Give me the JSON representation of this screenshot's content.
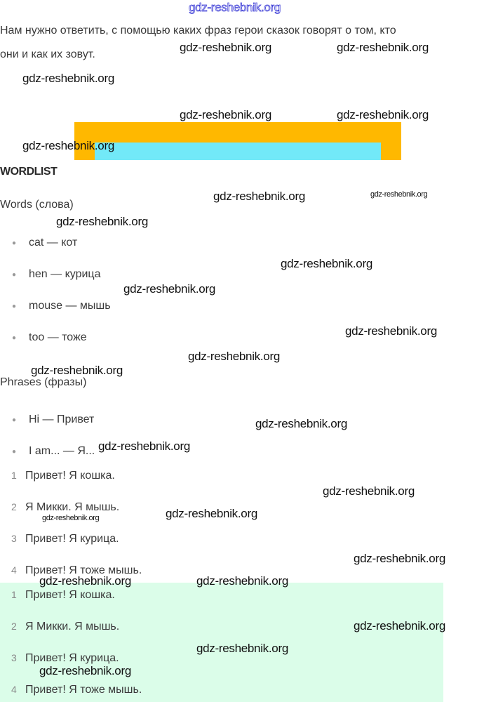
{
  "intro": {
    "line1": "Нам нужно ответить, с помощью каких фраз герои сказок говорят о том, кто",
    "line2": "они и как их зовут."
  },
  "colors": {
    "banner_outer": "#ffb800",
    "banner_inner": "#72e9f8",
    "answer_background": "#dbfde9"
  },
  "wordlist": {
    "heading": "WORDLIST",
    "words_heading": "Words (слова)",
    "words": [
      "cat — кот",
      "hen — курица",
      "mouse — мышь",
      "too — тоже"
    ],
    "phrases_heading": "Phrases (фразы)",
    "phrases": [
      "Hi — Привет",
      "I am... — Я..."
    ]
  },
  "sentences": [
    {
      "n": "1",
      "text": "Привет! Я кошка."
    },
    {
      "n": "2",
      "text": "Я Микки. Я мышь."
    },
    {
      "n": "3",
      "text": "Привет! Я курица."
    },
    {
      "n": "4",
      "text": "Привет! Я тоже мышь."
    }
  ],
  "answer": [
    {
      "n": "1",
      "text": "Привет! Я кошка."
    },
    {
      "n": "2",
      "text": "Я Микки. Я мышь."
    },
    {
      "n": "3",
      "text": "Привет! Я курица."
    },
    {
      "n": "4",
      "text": "Привет! Я тоже мышь."
    }
  ],
  "watermark": "gdz-reshebnik.org"
}
